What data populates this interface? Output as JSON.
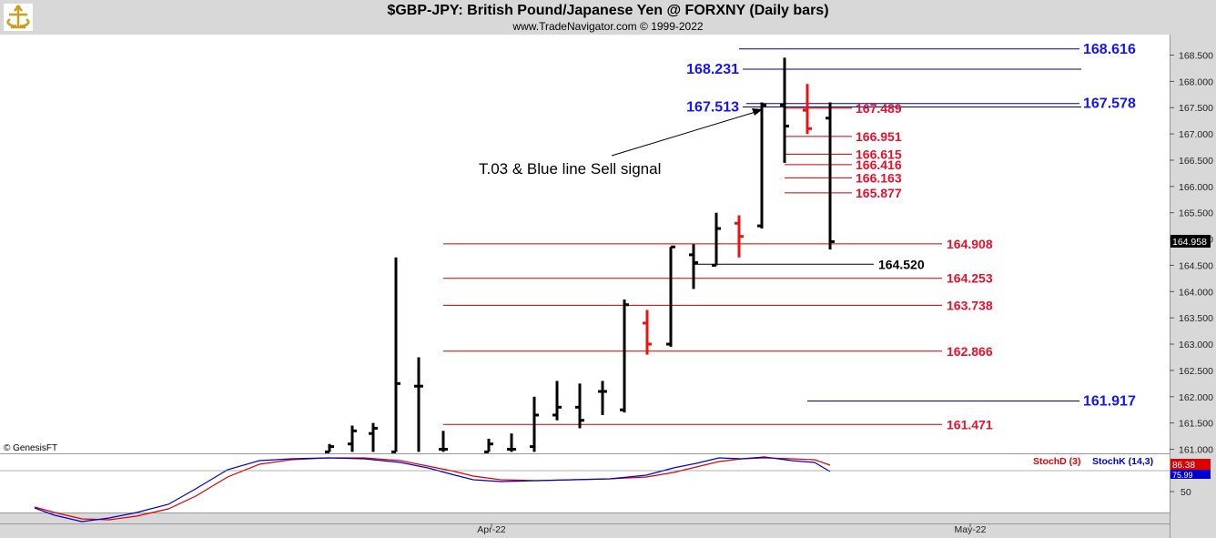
{
  "header": {
    "title": "$GBP-JPY:  British Pound/Japanese Yen @ FORXNY  (Daily bars)",
    "subtitle": "www.TradeNavigator.com © 1999-2022"
  },
  "watermark": "© GenesisFT",
  "colors": {
    "blue_line": "#00008b",
    "red_line": "#cc0000",
    "blue_label": "#1414ff",
    "red_label": "#e8102c",
    "bar_black": "#000000",
    "bar_red": "#ee1111",
    "stoch_d": "#dd0000",
    "stoch_k": "#0000cc"
  },
  "chart_data": [
    {
      "type": "ohlc",
      "title": "$GBP-JPY:  British Pound/Japanese Yen @ FORXNY  (Daily bars)",
      "ylim": [
        160.9,
        168.9
      ],
      "y_ticks": [
        "168.500",
        "168.000",
        "167.500",
        "167.000",
        "166.500",
        "166.000",
        "165.500",
        "165.000",
        "164.500",
        "164.000",
        "163.500",
        "163.000",
        "162.500",
        "162.000",
        "161.500",
        "161.000"
      ],
      "last_price": "164.958",
      "x_labels": [
        "Apr-22",
        "May-22"
      ],
      "bars": [
        {
          "o": 160.95,
          "h": 161.1,
          "l": 160.95,
          "c": 161.05,
          "color": "black"
        },
        {
          "o": 161.1,
          "h": 161.45,
          "l": 160.95,
          "c": 161.35,
          "color": "black"
        },
        {
          "o": 161.3,
          "h": 161.5,
          "l": 160.95,
          "c": 161.4,
          "color": "black"
        },
        {
          "o": 160.95,
          "h": 164.65,
          "l": 160.95,
          "c": 162.25,
          "color": "black"
        },
        {
          "o": 162.2,
          "h": 162.75,
          "l": 160.95,
          "c": 162.2,
          "color": "black"
        },
        {
          "o": 161.0,
          "h": 161.35,
          "l": 160.95,
          "c": 161.0,
          "color": "black"
        },
        {
          "o": 160.95,
          "h": 161.2,
          "l": 160.95,
          "c": 161.1,
          "color": "black"
        },
        {
          "o": 161.0,
          "h": 161.3,
          "l": 160.95,
          "c": 161.0,
          "color": "black"
        },
        {
          "o": 161.05,
          "h": 162.0,
          "l": 160.95,
          "c": 161.65,
          "color": "black"
        },
        {
          "o": 161.65,
          "h": 162.3,
          "l": 161.55,
          "c": 161.8,
          "color": "black"
        },
        {
          "o": 161.8,
          "h": 162.25,
          "l": 161.4,
          "c": 161.55,
          "color": "black"
        },
        {
          "o": 162.1,
          "h": 162.3,
          "l": 161.65,
          "c": 162.1,
          "color": "black"
        },
        {
          "o": 161.75,
          "h": 163.85,
          "l": 161.7,
          "c": 163.75,
          "color": "black"
        },
        {
          "o": 163.4,
          "h": 163.65,
          "l": 162.8,
          "c": 163.0,
          "color": "red"
        },
        {
          "o": 163.0,
          "h": 164.85,
          "l": 162.95,
          "c": 164.85,
          "color": "black"
        },
        {
          "o": 164.7,
          "h": 164.9,
          "l": 164.05,
          "c": 164.55,
          "color": "black"
        },
        {
          "o": 164.5,
          "h": 165.5,
          "l": 164.5,
          "c": 165.2,
          "color": "black"
        },
        {
          "o": 165.3,
          "h": 165.45,
          "l": 164.65,
          "c": 165.05,
          "color": "red"
        },
        {
          "o": 165.25,
          "h": 167.6,
          "l": 165.2,
          "c": 167.55,
          "color": "black"
        },
        {
          "o": 167.55,
          "h": 168.45,
          "l": 166.45,
          "c": 167.15,
          "color": "black"
        },
        {
          "o": 167.45,
          "h": 167.95,
          "l": 167.0,
          "c": 167.1,
          "color": "red"
        },
        {
          "o": 167.3,
          "h": 167.6,
          "l": 164.8,
          "c": 164.95,
          "color": "black"
        }
      ],
      "levels": [
        {
          "value": 168.616,
          "label": "168.616",
          "color": "blue",
          "side": "right"
        },
        {
          "value": 168.231,
          "label": "168.231",
          "color": "blue",
          "side": "left"
        },
        {
          "value": 167.578,
          "label": "167.578",
          "color": "blue",
          "side": "right"
        },
        {
          "value": 167.513,
          "label": "167.513",
          "color": "blue",
          "side": "left"
        },
        {
          "value": 167.489,
          "label": "167.489",
          "color": "red",
          "side": "mid"
        },
        {
          "value": 166.951,
          "label": "166.951",
          "color": "red",
          "side": "mid"
        },
        {
          "value": 166.615,
          "label": "166.615",
          "color": "red",
          "side": "mid"
        },
        {
          "value": 166.416,
          "label": "166.416",
          "color": "red",
          "side": "mid"
        },
        {
          "value": 166.163,
          "label": "166.163",
          "color": "red",
          "side": "mid"
        },
        {
          "value": 165.877,
          "label": "165.877",
          "color": "red",
          "side": "mid"
        },
        {
          "value": 164.908,
          "label": "164.908",
          "color": "red",
          "side": "right"
        },
        {
          "value": 164.52,
          "label": "164.520",
          "color": "black",
          "side": "mid2"
        },
        {
          "value": 164.253,
          "label": "164.253",
          "color": "red",
          "side": "right"
        },
        {
          "value": 163.738,
          "label": "163.738",
          "color": "red",
          "side": "right"
        },
        {
          "value": 162.866,
          "label": "162.866",
          "color": "red",
          "side": "right"
        },
        {
          "value": 161.917,
          "label": "161.917",
          "color": "blue",
          "side": "right"
        },
        {
          "value": 161.471,
          "label": "161.471",
          "color": "red",
          "side": "right"
        }
      ],
      "annotation": "T.03 & Blue line Sell signal"
    },
    {
      "type": "line",
      "series": [
        {
          "name": "StochD (3)",
          "color": "red",
          "last": "86.38"
        },
        {
          "name": "StochK (14,3)",
          "color": "blue",
          "last": "75.99"
        }
      ],
      "y_ticks": [
        "50"
      ]
    }
  ]
}
